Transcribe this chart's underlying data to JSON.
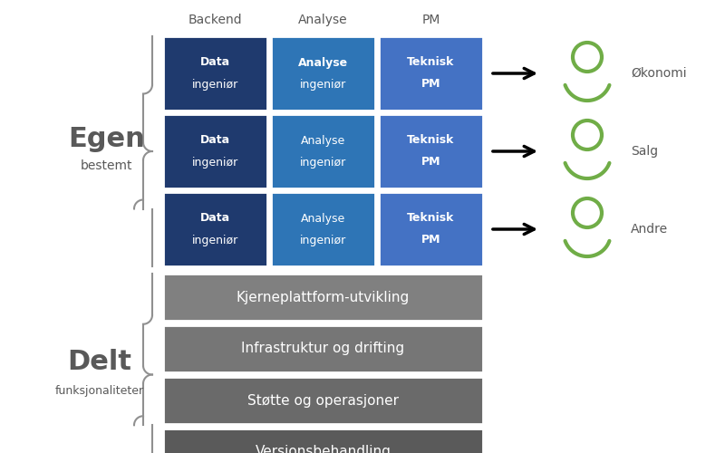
{
  "bg_color": "#ffffff",
  "fig_width": 8.0,
  "fig_height": 5.0,
  "col_headers": [
    "Backend",
    "Analyse",
    "PM"
  ],
  "rows_top": [
    {
      "label_line1": "Data",
      "label_line2": "ingeniør",
      "color": "#1f3a6e",
      "bold1": true,
      "bold2": false
    },
    {
      "label_line1": "Data",
      "label_line2": "ingeniør",
      "color": "#1f3a6e",
      "bold1": true,
      "bold2": false
    },
    {
      "label_line1": "Data",
      "label_line2": "ingeniør",
      "color": "#1f3a6e",
      "bold1": true,
      "bold2": false
    }
  ],
  "rows_mid": [
    {
      "label_line1": "Analyse",
      "label_line2": "ingeniør",
      "color": "#2e75b6",
      "bold1": true,
      "bold2": false
    },
    {
      "label_line1": "Analyse",
      "label_line2": "ingeniør",
      "color": "#2e75b6",
      "bold1": false,
      "bold2": false
    },
    {
      "label_line1": "Analyse",
      "label_line2": "ingeniør",
      "color": "#2e75b6",
      "bold1": false,
      "bold2": false
    }
  ],
  "rows_right": [
    {
      "label_line1": "Teknisk",
      "label_line2": "PM",
      "color": "#4472c4",
      "bold1": true,
      "bold2": true
    },
    {
      "label_line1": "Teknisk",
      "label_line2": "PM",
      "color": "#4472c4",
      "bold1": true,
      "bold2": true
    },
    {
      "label_line1": "Teknisk",
      "label_line2": "PM",
      "color": "#4472c4",
      "bold1": true,
      "bold2": true
    }
  ],
  "shared_bars": [
    {
      "label": "Kjerneplattform-utvikling",
      "color": "#808080"
    },
    {
      "label": "Infrastruktur og drifting",
      "color": "#767676"
    },
    {
      "label": "Støtte og operasjoner",
      "color": "#6a6a6a"
    },
    {
      "label": "Versjonsbehandling",
      "color": "#5a5a5a"
    }
  ],
  "person_labels": [
    "Økonomi",
    "Salg",
    "Andre"
  ],
  "person_color": "#70ad47",
  "left_label_eigen": "Egen",
  "left_sublabel_eigen": "bestemt",
  "left_label_delt": "Delt",
  "left_sublabel_delt": "funksjonaliteter",
  "text_color_white": "#ffffff",
  "text_color_dark": "#595959",
  "text_color_black": "#000000"
}
